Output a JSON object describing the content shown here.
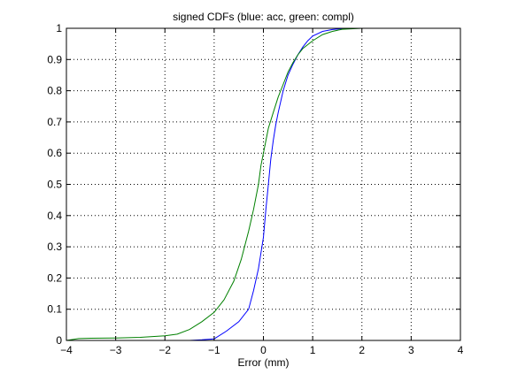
{
  "chart_data": {
    "type": "line",
    "title": "signed CDFs (blue: acc, green: compl)",
    "xlabel": "Error (mm)",
    "ylabel": "",
    "xlim": [
      -4,
      4
    ],
    "ylim": [
      0,
      1
    ],
    "grid": true,
    "x_ticks": [
      "−4",
      "−3",
      "−2",
      "−1",
      "0",
      "1",
      "2",
      "3",
      "4"
    ],
    "y_ticks": [
      "0",
      "0.1",
      "0.2",
      "0.3",
      "0.4",
      "0.5",
      "0.6",
      "0.7",
      "0.8",
      "0.9",
      "1"
    ],
    "series": [
      {
        "color": "#0000ff",
        "x": [
          -2.0,
          -1.5,
          -1.25,
          -1.0,
          -0.75,
          -0.5,
          -0.3,
          -0.2,
          -0.1,
          0.0,
          0.05,
          0.1,
          0.15,
          0.2,
          0.25,
          0.3,
          0.4,
          0.5,
          0.6,
          0.7,
          0.8,
          0.9,
          1.0,
          1.2,
          1.4,
          1.6,
          1.8,
          2.0,
          2.5,
          3.0,
          4.0
        ],
        "y": [
          0.0,
          0.0,
          0.002,
          0.005,
          0.03,
          0.06,
          0.1,
          0.16,
          0.23,
          0.33,
          0.42,
          0.5,
          0.58,
          0.64,
          0.69,
          0.73,
          0.8,
          0.85,
          0.885,
          0.915,
          0.94,
          0.96,
          0.975,
          0.99,
          0.996,
          0.999,
          1.0,
          1.0,
          1.0,
          1.0,
          1.0
        ]
      },
      {
        "color": "#008000",
        "x": [
          -4.0,
          -3.75,
          -3.5,
          -3.0,
          -2.5,
          -2.0,
          -1.75,
          -1.5,
          -1.25,
          -1.0,
          -0.8,
          -0.6,
          -0.45,
          -0.3,
          -0.2,
          -0.1,
          -0.05,
          0.0,
          0.05,
          0.1,
          0.2,
          0.3,
          0.4,
          0.5,
          0.6,
          0.7,
          0.8,
          1.0,
          1.2,
          1.4,
          1.6,
          2.0,
          3.0,
          4.0
        ],
        "y": [
          0.0,
          0.006,
          0.007,
          0.008,
          0.01,
          0.015,
          0.02,
          0.035,
          0.06,
          0.09,
          0.13,
          0.19,
          0.26,
          0.35,
          0.42,
          0.5,
          0.56,
          0.6,
          0.64,
          0.68,
          0.73,
          0.78,
          0.82,
          0.86,
          0.89,
          0.915,
          0.935,
          0.96,
          0.98,
          0.99,
          0.997,
          1.0,
          1.0,
          1.0
        ]
      }
    ]
  }
}
